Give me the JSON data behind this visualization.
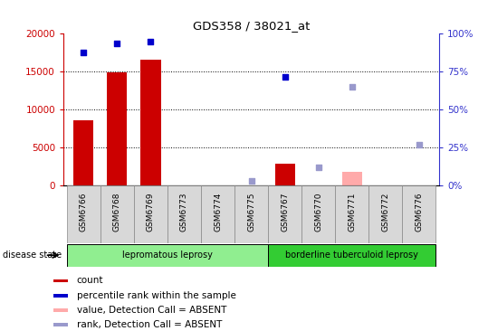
{
  "title": "GDS358 / 38021_at",
  "samples": [
    "GSM6766",
    "GSM6768",
    "GSM6769",
    "GSM6773",
    "GSM6774",
    "GSM6775",
    "GSM6767",
    "GSM6770",
    "GSM6771",
    "GSM6772",
    "GSM6776"
  ],
  "count_present": [
    true,
    true,
    true,
    false,
    false,
    false,
    true,
    false,
    false,
    false,
    false
  ],
  "count_values": [
    8500,
    14900,
    16500,
    0,
    0,
    0,
    2800,
    0,
    0,
    0,
    0
  ],
  "count_absent_flag": [
    false,
    false,
    false,
    false,
    false,
    false,
    false,
    false,
    true,
    false,
    false
  ],
  "count_absent_values": [
    0,
    0,
    0,
    0,
    0,
    0,
    0,
    0,
    1800,
    0,
    0
  ],
  "pct_present_flag": [
    true,
    true,
    true,
    false,
    false,
    false,
    true,
    false,
    false,
    false,
    false
  ],
  "pct_present_values": [
    17500,
    18700,
    18900,
    0,
    0,
    0,
    14300,
    0,
    0,
    0,
    0
  ],
  "pct_absent_flag": [
    false,
    false,
    false,
    false,
    false,
    true,
    false,
    true,
    true,
    false,
    true
  ],
  "pct_absent_values": [
    0,
    0,
    0,
    0,
    0,
    600,
    0,
    2400,
    13000,
    0,
    5300
  ],
  "disease_groups": [
    {
      "label": "lepromatous leprosy",
      "start": 0,
      "end": 6,
      "color": "#90ee90"
    },
    {
      "label": "borderline tuberculoid leprosy",
      "start": 6,
      "end": 11,
      "color": "#33cc33"
    }
  ],
  "ylim_left": [
    0,
    20000
  ],
  "yticks_left": [
    0,
    5000,
    10000,
    15000,
    20000
  ],
  "right_ticks_pct": [
    0,
    25,
    50,
    75,
    100
  ],
  "left_axis_color": "#cc0000",
  "right_axis_color": "#3333cc",
  "bar_color_present": "#cc0000",
  "bar_color_absent": "#ffaaaa",
  "dot_color_present": "#0000cc",
  "dot_color_absent": "#9999cc",
  "cell_bg_color": "#d8d8d8",
  "cell_border_color": "#888888"
}
